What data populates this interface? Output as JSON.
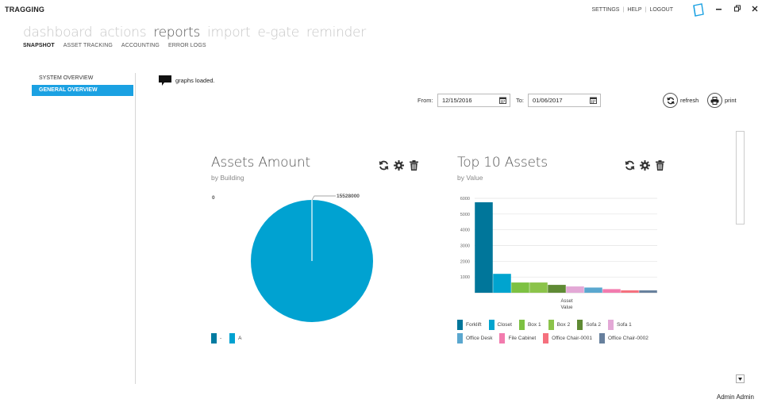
{
  "app": {
    "title": "TRAGGING"
  },
  "top_links": [
    "SETTINGS",
    "HELP",
    "LOGOUT"
  ],
  "main_nav": [
    {
      "label": "dashboard",
      "active": false
    },
    {
      "label": "actions",
      "active": false
    },
    {
      "label": "reports",
      "active": true
    },
    {
      "label": "import",
      "active": false
    },
    {
      "label": "e-gate",
      "active": false
    },
    {
      "label": "reminder",
      "active": false
    }
  ],
  "sub_nav": [
    {
      "label": "SNAPSHOT",
      "active": true
    },
    {
      "label": "ASSET TRACKING",
      "active": false
    },
    {
      "label": "ACCOUNTING",
      "active": false
    },
    {
      "label": "ERROR LOGS",
      "active": false
    }
  ],
  "sidebar": {
    "items": [
      {
        "label": "SYSTEM OVERVIEW",
        "active": false
      },
      {
        "label": "GENERAL OVERVIEW",
        "active": true
      }
    ]
  },
  "notification": {
    "text": "graphs loaded."
  },
  "date_range": {
    "from_label": "From:",
    "from_value": "12/15/2016",
    "to_label": "To:",
    "to_value": "01/06/2017"
  },
  "actions": {
    "refresh": "refresh",
    "print": "print"
  },
  "colors": {
    "accent": "#1ba1e2",
    "pie": "#00a2d1"
  },
  "widgets": {
    "assets_amount": {
      "title": "Assets Amount",
      "subtitle": "by Building",
      "legend": [
        "-",
        "A"
      ]
    },
    "top10": {
      "title": "Top 10 Assets",
      "subtitle": "by Value"
    }
  },
  "chart_data": [
    {
      "type": "pie",
      "title": "Assets Amount",
      "subtitle": "by Building",
      "categories": [
        "-",
        "A"
      ],
      "values": [
        0,
        15528000
      ],
      "data_labels": [
        "0",
        "15528000"
      ],
      "colors": [
        "#007ba1",
        "#00a2d1"
      ]
    },
    {
      "type": "bar",
      "title": "Top 10 Assets",
      "subtitle": "by Value",
      "xlabel": "Asset",
      "xlabel2": "Value",
      "ylabel": "",
      "ylim": [
        0,
        6000
      ],
      "yticks": [
        1000,
        2000,
        3000,
        4000,
        5000,
        6000
      ],
      "grid": true,
      "legend_position": "bottom",
      "categories": [
        "Forklift",
        "Closet",
        "Box 1",
        "Box 2",
        "Sofa 2",
        "Sofa 1",
        "Office Desk",
        "File Cabinet",
        "Office Chair-0001",
        "Office Chair-0002"
      ],
      "values": [
        5750,
        1200,
        650,
        650,
        500,
        400,
        330,
        230,
        150,
        150
      ],
      "colors": [
        "#00769a",
        "#00a4cf",
        "#7dc142",
        "#8bc34a",
        "#5f8a34",
        "#e3a8d6",
        "#5aa7cf",
        "#f27bae",
        "#f5707e",
        "#67809d"
      ]
    }
  ],
  "footer": {
    "user": "Admin Admin"
  }
}
